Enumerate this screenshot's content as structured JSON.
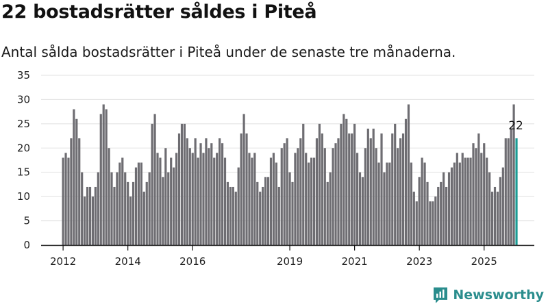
{
  "title": "22 bostadsrätter såldes i Piteå",
  "subtitle": "Antal sålda bostadsrätter i Piteå under de senaste tre månaderna.",
  "brand": {
    "name": "Newsworthy",
    "icon": "newsworthy-logo-icon"
  },
  "colors": {
    "bar": "#6e6d72",
    "highlight": "#1a9b94",
    "brand": "#2a8d8d",
    "grid": "#e0e0e0"
  },
  "chart_data": {
    "type": "bar",
    "y_range": [
      0,
      35
    ],
    "y_ticks": [
      0,
      5,
      10,
      15,
      20,
      25,
      30,
      35
    ],
    "x_ticks": [
      "2012",
      "2014",
      "2016",
      "2019",
      "2021",
      "2023",
      "2025"
    ],
    "x_tick_positions": [
      0,
      24,
      48,
      84,
      108,
      132,
      156
    ],
    "grid": "horizontal",
    "highlight_label": "22",
    "values": [
      18,
      19,
      18,
      22,
      28,
      26,
      22,
      15,
      10,
      12,
      12,
      10,
      12,
      15,
      27,
      29,
      28,
      20,
      15,
      12,
      15,
      17,
      18,
      15,
      13,
      10,
      13,
      16,
      17,
      17,
      11,
      13,
      15,
      25,
      27,
      19,
      18,
      14,
      20,
      15,
      18,
      16,
      19,
      23,
      25,
      25,
      22,
      20,
      19,
      22,
      18,
      21,
      19,
      22,
      20,
      21,
      18,
      19,
      22,
      21,
      18,
      13,
      12,
      12,
      11,
      16,
      23,
      27,
      23,
      19,
      18,
      19,
      13,
      11,
      12,
      14,
      14,
      18,
      19,
      17,
      12,
      20,
      21,
      22,
      15,
      13,
      19,
      20,
      22,
      25,
      19,
      17,
      18,
      18,
      22,
      25,
      23,
      20,
      13,
      15,
      20,
      21,
      22,
      25,
      27,
      26,
      23,
      23,
      25,
      19,
      15,
      14,
      20,
      24,
      22,
      24,
      20,
      17,
      23,
      15,
      17,
      17,
      23,
      25,
      20,
      22,
      23,
      26,
      29,
      17,
      11,
      9,
      14,
      18,
      17,
      13,
      9,
      9,
      10,
      12,
      13,
      15,
      12,
      15,
      16,
      17,
      19,
      17,
      19,
      18,
      18,
      18,
      21,
      20,
      23,
      19,
      21,
      18,
      15,
      11,
      12,
      11,
      14,
      16,
      22,
      22,
      24,
      29,
      22
    ]
  }
}
